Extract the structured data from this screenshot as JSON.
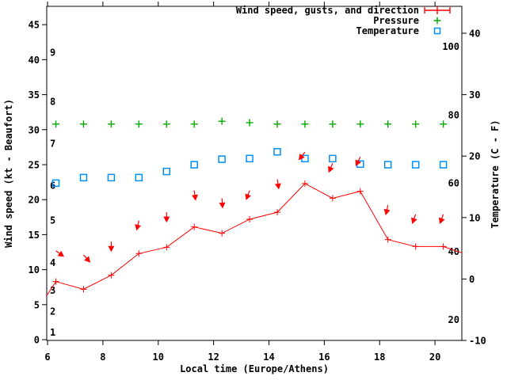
{
  "chart_data": {
    "type": "line",
    "title": "",
    "background": "#ffffff",
    "border_color": "#000000",
    "legend_position": "top-right-inside",
    "grid": false,
    "legend": [
      {
        "label": "Wind speed, gusts, and direction",
        "color": "#ff0000",
        "marker": "errorbar-plus"
      },
      {
        "label": "Pressure",
        "color": "#00a800",
        "marker": "plus"
      },
      {
        "label": "Temperature",
        "color": "#0090ff",
        "marker": "open-square"
      }
    ],
    "x_axis": {
      "label": "Local time (Europe/Athens)",
      "range": [
        5.97,
        20.97
      ],
      "ticks": [
        6,
        8,
        10,
        12,
        14,
        16,
        18,
        20
      ]
    },
    "y_left": {
      "label": "Wind speed (kt - Beaufort)",
      "range_kt": [
        -0.11,
        47.62
      ],
      "ticks_kt": [
        0,
        5,
        10,
        15,
        20,
        25,
        30,
        35,
        40,
        45
      ],
      "beaufort_inner_labels": [
        {
          "bft": "1",
          "kt": 1
        },
        {
          "bft": "2",
          "kt": 4
        },
        {
          "bft": "3",
          "kt": 7
        },
        {
          "bft": "4",
          "kt": 11
        },
        {
          "bft": "5",
          "kt": 17
        },
        {
          "bft": "6",
          "kt": 22
        },
        {
          "bft": "7",
          "kt": 28
        },
        {
          "bft": "8",
          "kt": 34
        },
        {
          "bft": "9",
          "kt": 41
        }
      ]
    },
    "y_right": {
      "label": "Temperature (C - F)",
      "range_c": [
        -10,
        44.38
      ],
      "ticks_c": [
        -10,
        0,
        10,
        20,
        30,
        40
      ],
      "fahrenheit_inner_labels": [
        20,
        40,
        60,
        80,
        100
      ]
    },
    "series": {
      "wind_speed_kt": {
        "color": "#ff0000",
        "points": [
          {
            "t": 5.97,
            "kt": 6.3,
            "m": 0
          },
          {
            "t": 6.3,
            "kt": 8.3,
            "m": 1
          },
          {
            "t": 7.3,
            "kt": 7.2,
            "m": 1
          },
          {
            "t": 8.3,
            "kt": 9.2,
            "m": 1
          },
          {
            "t": 9.3,
            "kt": 12.3,
            "m": 1
          },
          {
            "t": 10.3,
            "kt": 13.2,
            "m": 1
          },
          {
            "t": 11.3,
            "kt": 16.1,
            "m": 1
          },
          {
            "t": 12.3,
            "kt": 15.2,
            "m": 1
          },
          {
            "t": 13.3,
            "kt": 17.2,
            "m": 1
          },
          {
            "t": 14.3,
            "kt": 18.2,
            "m": 1
          },
          {
            "t": 15.3,
            "kt": 22.3,
            "m": 1
          },
          {
            "t": 16.3,
            "kt": 20.2,
            "m": 1
          },
          {
            "t": 17.3,
            "kt": 21.2,
            "m": 1
          },
          {
            "t": 18.3,
            "kt": 14.3,
            "m": 1
          },
          {
            "t": 19.3,
            "kt": 13.3,
            "m": 1
          },
          {
            "t": 20.3,
            "kt": 13.3,
            "m": 1
          },
          {
            "t": 20.97,
            "kt": 12.4,
            "m": 0
          }
        ]
      },
      "gust_direction_arrows": {
        "color": "#ff0000",
        "note": "arrow tail at gust speed (kt), dir = screen tilt from straight down, + = toward right",
        "points": [
          {
            "t": 6.3,
            "kt": 12.7,
            "dir": 54
          },
          {
            "t": 7.3,
            "kt": 12.1,
            "dir": 42
          },
          {
            "t": 8.3,
            "kt": 14.0,
            "dir": 0
          },
          {
            "t": 9.3,
            "kt": 17.0,
            "dir": -13
          },
          {
            "t": 10.3,
            "kt": 18.2,
            "dir": 0
          },
          {
            "t": 11.3,
            "kt": 21.3,
            "dir": 8
          },
          {
            "t": 12.3,
            "kt": 20.2,
            "dir": 4
          },
          {
            "t": 13.3,
            "kt": 21.3,
            "dir": -20
          },
          {
            "t": 14.3,
            "kt": 22.9,
            "dir": 9
          },
          {
            "t": 15.3,
            "kt": 26.8,
            "dir": -38
          },
          {
            "t": 16.3,
            "kt": 25.2,
            "dir": -23
          },
          {
            "t": 17.3,
            "kt": 26.1,
            "dir": -27
          },
          {
            "t": 18.3,
            "kt": 19.2,
            "dir": -13
          },
          {
            "t": 19.3,
            "kt": 17.9,
            "dir": -20
          },
          {
            "t": 20.3,
            "kt": 17.9,
            "dir": -20
          }
        ]
      },
      "pressure": {
        "color": "#00a800",
        "note": "plotted on hidden scale; values given as left-axis kt equivalents of plotted marks",
        "points": [
          {
            "t": 6.3,
            "y": 30.8
          },
          {
            "t": 7.3,
            "y": 30.8
          },
          {
            "t": 8.3,
            "y": 30.8
          },
          {
            "t": 9.3,
            "y": 30.8
          },
          {
            "t": 10.3,
            "y": 30.8
          },
          {
            "t": 11.3,
            "y": 30.8
          },
          {
            "t": 12.3,
            "y": 31.2
          },
          {
            "t": 13.3,
            "y": 31.0
          },
          {
            "t": 14.3,
            "y": 30.8
          },
          {
            "t": 15.3,
            "y": 30.8
          },
          {
            "t": 16.3,
            "y": 30.8
          },
          {
            "t": 17.3,
            "y": 30.8
          },
          {
            "t": 18.3,
            "y": 30.8
          },
          {
            "t": 19.3,
            "y": 30.8
          },
          {
            "t": 20.3,
            "y": 30.8
          }
        ]
      },
      "temperature_c": {
        "color": "#0090ff",
        "points": [
          {
            "t": 6.3,
            "c": 15.6
          },
          {
            "t": 7.3,
            "c": 16.5
          },
          {
            "t": 8.3,
            "c": 16.5
          },
          {
            "t": 9.3,
            "c": 16.5
          },
          {
            "t": 10.3,
            "c": 17.5
          },
          {
            "t": 11.3,
            "c": 18.6
          },
          {
            "t": 12.3,
            "c": 19.5
          },
          {
            "t": 13.3,
            "c": 19.6
          },
          {
            "t": 14.3,
            "c": 20.7
          },
          {
            "t": 15.3,
            "c": 19.6
          },
          {
            "t": 16.3,
            "c": 19.6
          },
          {
            "t": 17.3,
            "c": 18.7
          },
          {
            "t": 18.3,
            "c": 18.6
          },
          {
            "t": 19.3,
            "c": 18.6
          },
          {
            "t": 20.3,
            "c": 18.6
          }
        ]
      }
    }
  }
}
